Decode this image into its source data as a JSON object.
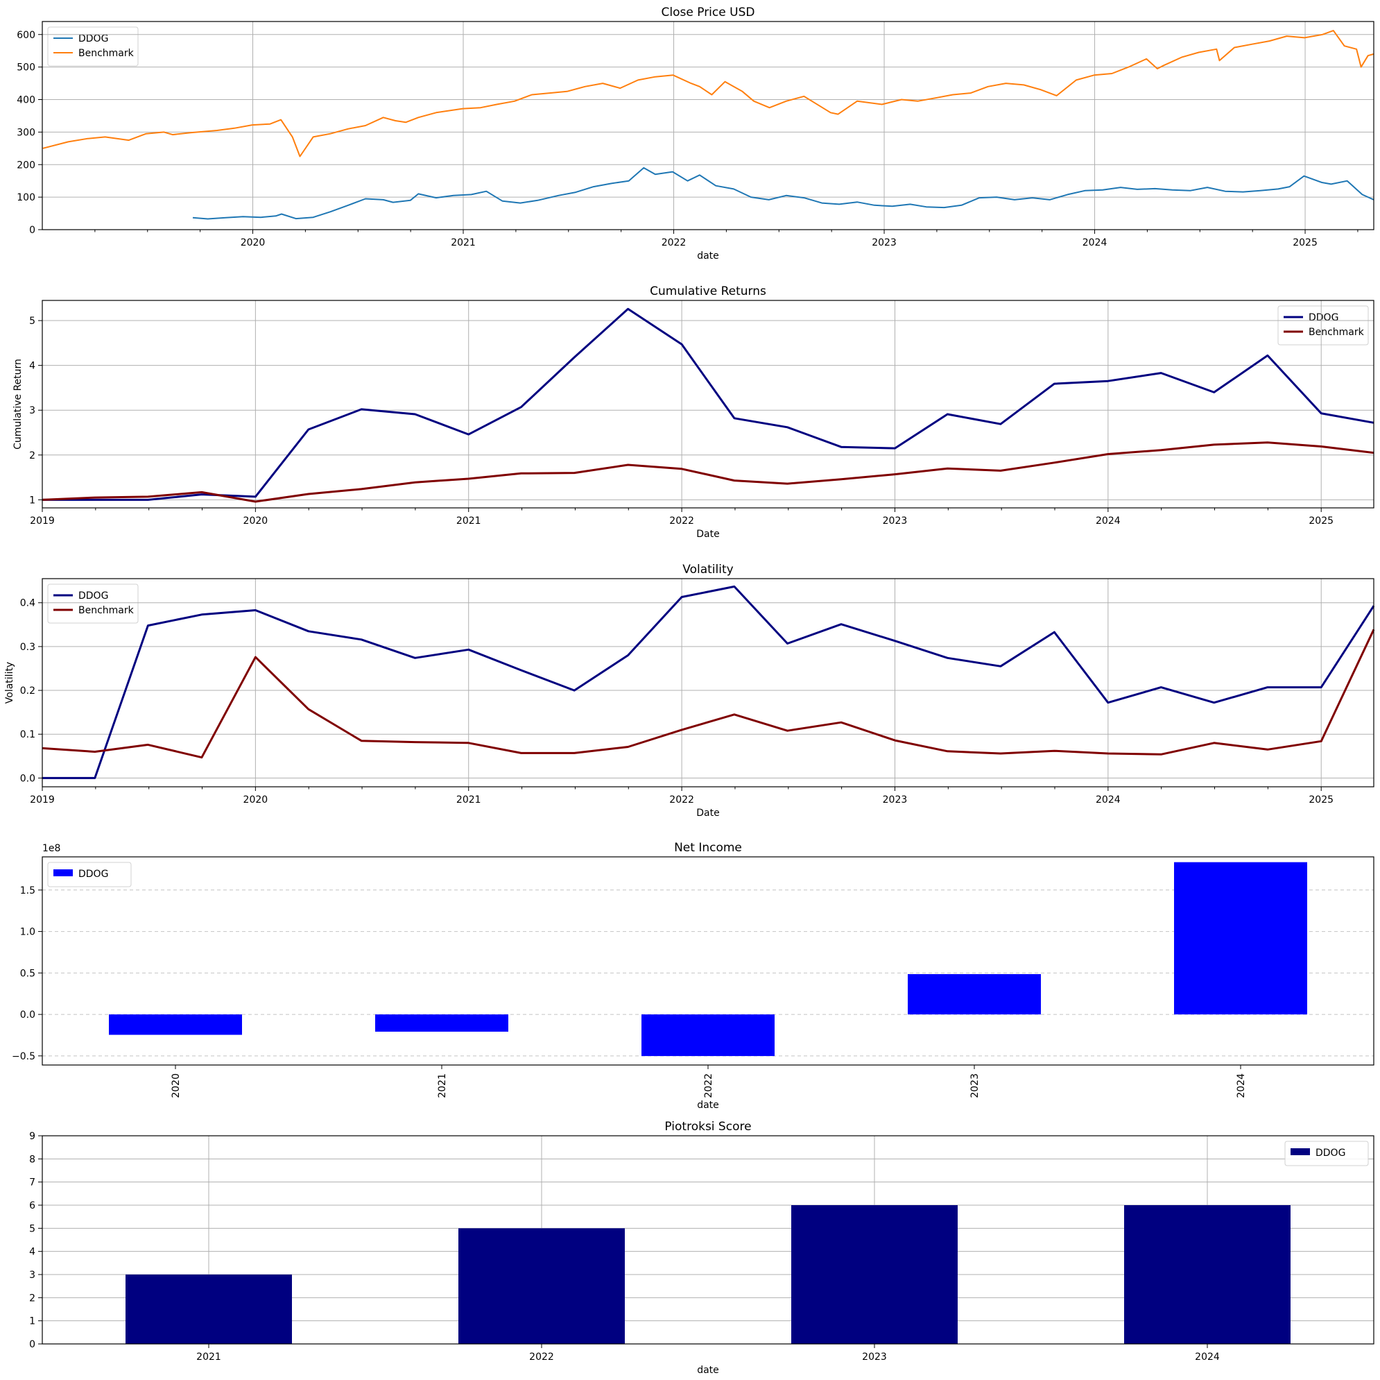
{
  "chart_data": [
    {
      "type": "line",
      "title": "Close Price USD",
      "xlabel": "date",
      "ylabel": "",
      "xlim": [
        "2019-01-01",
        "2025-04-30"
      ],
      "ylim": [
        0,
        640
      ],
      "xticks": [
        "2020",
        "2021",
        "2022",
        "2023",
        "2024",
        "2025"
      ],
      "yticks": [
        "0",
        "100",
        "200",
        "300",
        "400",
        "500",
        "600"
      ],
      "grid": true,
      "legend_position": "upper left",
      "colors": {
        "DDOG": "#1f77b4",
        "Benchmark": "#ff7f0e"
      },
      "series": [
        {
          "name": "DDOG",
          "x": [
            "2019-09-19",
            "2019-10-15",
            "2019-11-15",
            "2019-12-15",
            "2020-01-15",
            "2020-02-10",
            "2020-02-20",
            "2020-03-16",
            "2020-04-15",
            "2020-05-15",
            "2020-06-15",
            "2020-07-15",
            "2020-08-15",
            "2020-09-01",
            "2020-10-01",
            "2020-10-15",
            "2020-11-15",
            "2020-12-15",
            "2021-01-15",
            "2021-02-10",
            "2021-03-10",
            "2021-04-10",
            "2021-05-10",
            "2021-06-15",
            "2021-07-15",
            "2021-08-15",
            "2021-09-15",
            "2021-10-15",
            "2021-11-10",
            "2021-11-30",
            "2021-12-30",
            "2022-01-25",
            "2022-02-15",
            "2022-03-15",
            "2022-04-15",
            "2022-05-15",
            "2022-06-15",
            "2022-07-15",
            "2022-08-15",
            "2022-09-15",
            "2022-10-15",
            "2022-11-15",
            "2022-12-15",
            "2023-01-15",
            "2023-02-15",
            "2023-03-15",
            "2023-04-15",
            "2023-05-15",
            "2023-06-15",
            "2023-07-15",
            "2023-08-15",
            "2023-09-15",
            "2023-10-15",
            "2023-11-15",
            "2023-12-15",
            "2024-01-15",
            "2024-02-15",
            "2024-03-15",
            "2024-04-15",
            "2024-05-15",
            "2024-06-15",
            "2024-07-15",
            "2024-08-15",
            "2024-09-15",
            "2024-10-15",
            "2024-11-15",
            "2024-12-05",
            "2024-12-30",
            "2025-01-30",
            "2025-02-15",
            "2025-03-15",
            "2025-04-10",
            "2025-04-30"
          ],
          "values": [
            37,
            33,
            37,
            40,
            38,
            42,
            48,
            34,
            38,
            55,
            75,
            95,
            92,
            84,
            90,
            110,
            98,
            105,
            108,
            118,
            88,
            82,
            90,
            105,
            115,
            132,
            142,
            150,
            190,
            170,
            178,
            150,
            168,
            135,
            125,
            100,
            92,
            105,
            98,
            82,
            78,
            85,
            75,
            72,
            78,
            70,
            68,
            75,
            98,
            100,
            92,
            98,
            92,
            108,
            120,
            122,
            130,
            124,
            126,
            122,
            120,
            130,
            118,
            116,
            120,
            125,
            132,
            165,
            145,
            140,
            150,
            108,
            92
          ]
        },
        {
          "name": "Benchmark",
          "x": [
            "2019-01-02",
            "2019-02-15",
            "2019-03-20",
            "2019-04-20",
            "2019-05-31",
            "2019-06-30",
            "2019-07-31",
            "2019-08-15",
            "2019-09-15",
            "2019-10-31",
            "2019-11-30",
            "2019-12-31",
            "2020-01-31",
            "2020-02-19",
            "2020-03-10",
            "2020-03-23",
            "2020-04-15",
            "2020-05-15",
            "2020-06-15",
            "2020-07-15",
            "2020-08-15",
            "2020-09-05",
            "2020-09-23",
            "2020-10-15",
            "2020-11-15",
            "2020-12-31",
            "2021-01-31",
            "2021-02-28",
            "2021-03-31",
            "2021-04-30",
            "2021-05-31",
            "2021-06-30",
            "2021-07-31",
            "2021-08-31",
            "2021-09-30",
            "2021-10-31",
            "2021-11-30",
            "2021-12-31",
            "2022-01-31",
            "2022-02-15",
            "2022-03-08",
            "2022-03-31",
            "2022-04-30",
            "2022-05-20",
            "2022-06-16",
            "2022-07-15",
            "2022-08-15",
            "2022-09-30",
            "2022-10-13",
            "2022-11-15",
            "2022-12-28",
            "2023-01-31",
            "2023-02-28",
            "2023-03-31",
            "2023-04-30",
            "2023-05-31",
            "2023-06-30",
            "2023-07-31",
            "2023-08-31",
            "2023-09-30",
            "2023-10-27",
            "2023-11-30",
            "2023-12-31",
            "2024-01-31",
            "2024-02-29",
            "2024-03-31",
            "2024-04-19",
            "2024-04-30",
            "2024-05-31",
            "2024-06-30",
            "2024-07-31",
            "2024-08-05",
            "2024-08-31",
            "2024-09-30",
            "2024-10-31",
            "2024-11-30",
            "2024-12-31",
            "2025-01-31",
            "2025-02-19",
            "2025-03-10",
            "2025-03-31",
            "2025-04-08",
            "2025-04-20",
            "2025-04-30"
          ],
          "values": [
            250,
            270,
            280,
            285,
            275,
            295,
            300,
            292,
            298,
            305,
            312,
            322,
            325,
            338,
            285,
            225,
            285,
            295,
            310,
            320,
            345,
            335,
            330,
            345,
            360,
            372,
            375,
            385,
            395,
            415,
            420,
            425,
            440,
            450,
            435,
            460,
            470,
            475,
            450,
            440,
            415,
            455,
            425,
            395,
            375,
            395,
            410,
            360,
            355,
            395,
            385,
            400,
            395,
            405,
            415,
            420,
            440,
            450,
            445,
            430,
            412,
            460,
            475,
            480,
            500,
            525,
            495,
            505,
            530,
            545,
            555,
            520,
            560,
            570,
            580,
            595,
            590,
            600,
            612,
            565,
            555,
            500,
            535,
            540
          ]
        }
      ]
    },
    {
      "type": "line",
      "title": "Cumulative Returns",
      "xlabel": "Date",
      "ylabel": "Cumulative Return",
      "xlim": [
        "2019-01-01",
        "2025-04-01"
      ],
      "ylim": [
        0.82,
        5.45
      ],
      "xticks": [
        "2019",
        "2020",
        "2021",
        "2022",
        "2023",
        "2024",
        "2025"
      ],
      "yticks": [
        "1",
        "2",
        "3",
        "4",
        "5"
      ],
      "grid": true,
      "legend_position": "upper right",
      "colors": {
        "DDOG": "#000080",
        "Benchmark": "#800000"
      },
      "x": [
        "2019-01-01",
        "2019-04-01",
        "2019-07-01",
        "2019-10-01",
        "2020-01-01",
        "2020-04-01",
        "2020-07-01",
        "2020-10-01",
        "2021-01-01",
        "2021-04-01",
        "2021-07-01",
        "2021-10-01",
        "2022-01-01",
        "2022-04-01",
        "2022-07-01",
        "2022-10-01",
        "2023-01-01",
        "2023-04-01",
        "2023-07-01",
        "2023-10-01",
        "2024-01-01",
        "2024-04-01",
        "2024-07-01",
        "2024-10-01",
        "2025-01-01",
        "2025-04-01"
      ],
      "series": [
        {
          "name": "DDOG",
          "values": [
            1.0,
            1.0,
            1.0,
            1.12,
            1.07,
            2.57,
            3.02,
            2.91,
            2.46,
            3.07,
            4.18,
            5.26,
            4.47,
            2.82,
            2.62,
            2.18,
            2.15,
            2.91,
            2.69,
            3.59,
            3.65,
            3.83,
            3.4,
            4.22,
            2.93,
            2.72
          ]
        },
        {
          "name": "Benchmark",
          "values": [
            1.0,
            1.05,
            1.07,
            1.17,
            0.96,
            1.13,
            1.24,
            1.39,
            1.47,
            1.59,
            1.6,
            1.78,
            1.69,
            1.43,
            1.36,
            1.46,
            1.57,
            1.7,
            1.65,
            1.83,
            2.02,
            2.11,
            2.23,
            2.28,
            2.19,
            2.05
          ]
        }
      ]
    },
    {
      "type": "line",
      "title": "Volatility",
      "xlabel": "Date",
      "ylabel": "Volatility",
      "xlim": [
        "2019-01-01",
        "2025-04-01"
      ],
      "ylim": [
        -0.02,
        0.455
      ],
      "xticks": [
        "2019",
        "2020",
        "2021",
        "2022",
        "2023",
        "2024",
        "2025"
      ],
      "yticks": [
        "0.0",
        "0.1",
        "0.2",
        "0.3",
        "0.4"
      ],
      "grid": true,
      "legend_position": "upper left",
      "colors": {
        "DDOG": "#000080",
        "Benchmark": "#800000"
      },
      "x": [
        "2019-01-01",
        "2019-04-01",
        "2019-07-01",
        "2019-10-01",
        "2020-01-01",
        "2020-04-01",
        "2020-07-01",
        "2020-10-01",
        "2021-01-01",
        "2021-04-01",
        "2021-07-01",
        "2021-10-01",
        "2022-01-01",
        "2022-04-01",
        "2022-07-01",
        "2022-10-01",
        "2023-01-01",
        "2023-04-01",
        "2023-07-01",
        "2023-10-01",
        "2024-01-01",
        "2024-04-01",
        "2024-07-01",
        "2024-10-01",
        "2025-01-01",
        "2025-04-01"
      ],
      "series": [
        {
          "name": "DDOG",
          "values": [
            0.0,
            0.0,
            0.348,
            0.373,
            0.383,
            0.335,
            0.316,
            0.274,
            0.293,
            0.246,
            0.2,
            0.28,
            0.413,
            0.437,
            0.307,
            0.351,
            0.313,
            0.274,
            0.255,
            0.333,
            0.172,
            0.207,
            0.172,
            0.207,
            0.207,
            0.393
          ]
        },
        {
          "name": "Benchmark",
          "values": [
            0.068,
            0.06,
            0.076,
            0.047,
            0.276,
            0.157,
            0.085,
            0.082,
            0.08,
            0.057,
            0.057,
            0.071,
            0.11,
            0.145,
            0.108,
            0.127,
            0.086,
            0.061,
            0.056,
            0.062,
            0.056,
            0.054,
            0.08,
            0.065,
            0.084,
            0.339
          ]
        }
      ]
    },
    {
      "type": "bar",
      "title": "Net Income",
      "xlabel": "date",
      "ylabel": "",
      "scale_label": "1e8",
      "categories": [
        "2020",
        "2021",
        "2022",
        "2023",
        "2024"
      ],
      "ylim": [
        -0.61,
        1.9
      ],
      "yticks": [
        "−0.5",
        "0.0",
        "0.5",
        "1.0",
        "1.5"
      ],
      "grid": "y dashed",
      "legend_position": "upper left",
      "colors": {
        "DDOG": "#0000ff"
      },
      "series": [
        {
          "name": "DDOG",
          "values": [
            -0.246,
            -0.208,
            -0.502,
            0.486,
            1.836
          ]
        }
      ]
    },
    {
      "type": "bar",
      "title": "Piotroksi Score",
      "xlabel": "date",
      "ylabel": "",
      "categories": [
        "2021",
        "2022",
        "2023",
        "2024"
      ],
      "ylim": [
        0,
        9
      ],
      "yticks": [
        "0",
        "1",
        "2",
        "3",
        "4",
        "5",
        "6",
        "7",
        "8",
        "9"
      ],
      "grid": true,
      "legend_position": "upper right",
      "colors": {
        "DDOG": "#000080"
      },
      "series": [
        {
          "name": "DDOG",
          "values": [
            3,
            5,
            6,
            6
          ]
        }
      ]
    }
  ]
}
